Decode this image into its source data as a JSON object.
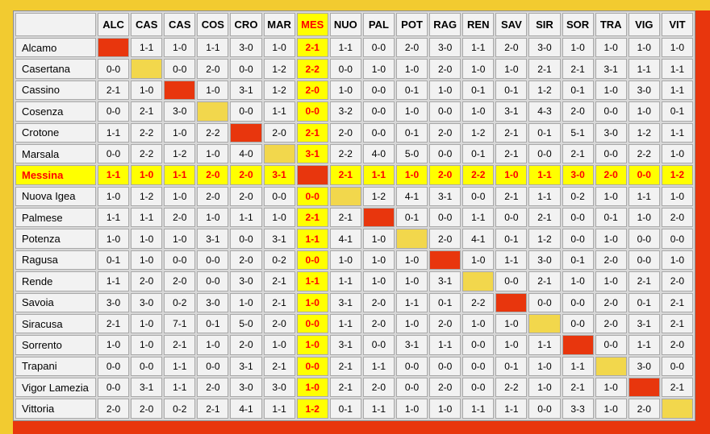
{
  "page": {
    "background_color": "#F2CB30",
    "accent_red": "#E8360D"
  },
  "results_table": {
    "corner_label": "",
    "columns": [
      "ALC",
      "CAS",
      "CAS",
      "COS",
      "CRO",
      "MAR",
      "MES",
      "NUO",
      "PAL",
      "POT",
      "RAG",
      "REN",
      "SAV",
      "SIR",
      "SOR",
      "TRA",
      "VIG",
      "VIT"
    ],
    "highlighted_column_index": 6,
    "highlighted_team": "Messina",
    "colors": {
      "highlight_bg": "#FFFF00",
      "highlight_text": "#FF0000",
      "diagonal_red": "#E8360D",
      "diagonal_yellow": "#F2D74C",
      "cell_bg": "#F2F2F2"
    },
    "rows": [
      {
        "team": "Alcamo",
        "diagonal": "red",
        "scores": [
          null,
          "1-1",
          "1-0",
          "1-1",
          "3-0",
          "1-0",
          "2-1",
          "1-1",
          "0-0",
          "2-0",
          "3-0",
          "1-1",
          "2-0",
          "3-0",
          "1-0",
          "1-0",
          "1-0",
          "1-0"
        ]
      },
      {
        "team": "Casertana",
        "diagonal": "yellow",
        "scores": [
          "0-0",
          null,
          "0-0",
          "2-0",
          "0-0",
          "1-2",
          "2-2",
          "0-0",
          "1-0",
          "1-0",
          "2-0",
          "1-0",
          "1-0",
          "2-1",
          "2-1",
          "3-1",
          "1-1",
          "1-1"
        ]
      },
      {
        "team": "Cassino",
        "diagonal": "red",
        "scores": [
          "2-1",
          "1-0",
          null,
          "1-0",
          "3-1",
          "1-2",
          "2-0",
          "1-0",
          "0-0",
          "0-1",
          "1-0",
          "0-1",
          "0-1",
          "1-2",
          "0-1",
          "1-0",
          "3-0",
          "1-1"
        ]
      },
      {
        "team": "Cosenza",
        "diagonal": "yellow",
        "scores": [
          "0-0",
          "2-1",
          "3-0",
          null,
          "0-0",
          "1-1",
          "0-0",
          "3-2",
          "0-0",
          "1-0",
          "0-0",
          "1-0",
          "3-1",
          "4-3",
          "2-0",
          "0-0",
          "1-0",
          "0-1"
        ]
      },
      {
        "team": "Crotone",
        "diagonal": "red",
        "scores": [
          "1-1",
          "2-2",
          "1-0",
          "2-2",
          null,
          "2-0",
          "2-1",
          "2-0",
          "0-0",
          "0-1",
          "2-0",
          "1-2",
          "2-1",
          "0-1",
          "5-1",
          "3-0",
          "1-2",
          "1-1"
        ]
      },
      {
        "team": "Marsala",
        "diagonal": "yellow",
        "scores": [
          "0-0",
          "2-2",
          "1-2",
          "1-0",
          "4-0",
          null,
          "3-1",
          "2-2",
          "4-0",
          "5-0",
          "0-0",
          "0-1",
          "2-1",
          "0-0",
          "2-1",
          "0-0",
          "2-2",
          "1-0"
        ]
      },
      {
        "team": "Messina",
        "diagonal": "red",
        "scores": [
          "1-1",
          "1-0",
          "1-1",
          "2-0",
          "2-0",
          "3-1",
          null,
          "2-1",
          "1-1",
          "1-0",
          "2-0",
          "2-2",
          "1-0",
          "1-1",
          "3-0",
          "2-0",
          "0-0",
          "1-2"
        ]
      },
      {
        "team": "Nuova Igea",
        "diagonal": "yellow",
        "scores": [
          "1-0",
          "1-2",
          "1-0",
          "2-0",
          "2-0",
          "0-0",
          "0-0",
          null,
          "1-2",
          "4-1",
          "3-1",
          "0-0",
          "2-1",
          "1-1",
          "0-2",
          "1-0",
          "1-1",
          "1-0"
        ]
      },
      {
        "team": "Palmese",
        "diagonal": "red",
        "scores": [
          "1-1",
          "1-1",
          "2-0",
          "1-0",
          "1-1",
          "1-0",
          "2-1",
          "2-1",
          null,
          "0-1",
          "0-0",
          "1-1",
          "0-0",
          "2-1",
          "0-0",
          "0-1",
          "1-0",
          "2-0"
        ]
      },
      {
        "team": "Potenza",
        "diagonal": "yellow",
        "scores": [
          "1-0",
          "1-0",
          "1-0",
          "3-1",
          "0-0",
          "3-1",
          "1-1",
          "4-1",
          "1-0",
          null,
          "2-0",
          "4-1",
          "0-1",
          "1-2",
          "0-0",
          "1-0",
          "0-0",
          "0-0"
        ]
      },
      {
        "team": "Ragusa",
        "diagonal": "red",
        "scores": [
          "0-1",
          "1-0",
          "0-0",
          "0-0",
          "2-0",
          "0-2",
          "0-0",
          "1-0",
          "1-0",
          "1-0",
          null,
          "1-0",
          "1-1",
          "3-0",
          "0-1",
          "2-0",
          "0-0",
          "1-0"
        ]
      },
      {
        "team": "Rende",
        "diagonal": "yellow",
        "scores": [
          "1-1",
          "2-0",
          "2-0",
          "0-0",
          "3-0",
          "2-1",
          "1-1",
          "1-1",
          "1-0",
          "1-0",
          "3-1",
          null,
          "0-0",
          "2-1",
          "1-0",
          "1-0",
          "2-1",
          "2-0"
        ]
      },
      {
        "team": "Savoia",
        "diagonal": "red",
        "scores": [
          "3-0",
          "3-0",
          "0-2",
          "3-0",
          "1-0",
          "2-1",
          "1-0",
          "3-1",
          "2-0",
          "1-1",
          "0-1",
          "2-2",
          null,
          "0-0",
          "0-0",
          "2-0",
          "0-1",
          "2-1"
        ]
      },
      {
        "team": "Siracusa",
        "diagonal": "yellow",
        "scores": [
          "2-1",
          "1-0",
          "7-1",
          "0-1",
          "5-0",
          "2-0",
          "0-0",
          "1-1",
          "2-0",
          "1-0",
          "2-0",
          "1-0",
          "1-0",
          null,
          "0-0",
          "2-0",
          "3-1",
          "2-1"
        ]
      },
      {
        "team": "Sorrento",
        "diagonal": "red",
        "scores": [
          "1-0",
          "1-0",
          "2-1",
          "1-0",
          "2-0",
          "1-0",
          "1-0",
          "3-1",
          "0-0",
          "3-1",
          "1-1",
          "0-0",
          "1-0",
          "1-1",
          null,
          "0-0",
          "1-1",
          "2-0"
        ]
      },
      {
        "team": "Trapani",
        "diagonal": "yellow",
        "scores": [
          "0-0",
          "0-0",
          "1-1",
          "0-0",
          "3-1",
          "2-1",
          "0-0",
          "2-1",
          "1-1",
          "0-0",
          "0-0",
          "0-0",
          "0-1",
          "1-0",
          "1-1",
          null,
          "3-0",
          "0-0"
        ]
      },
      {
        "team": "Vigor Lamezia",
        "diagonal": "red",
        "scores": [
          "0-0",
          "3-1",
          "1-1",
          "2-0",
          "3-0",
          "3-0",
          "1-0",
          "2-1",
          "2-0",
          "0-0",
          "2-0",
          "0-0",
          "2-2",
          "1-0",
          "2-1",
          "1-0",
          null,
          "2-1"
        ]
      },
      {
        "team": "Vittoria",
        "diagonal": "yellow",
        "scores": [
          "2-0",
          "2-0",
          "0-2",
          "2-1",
          "4-1",
          "1-1",
          "1-2",
          "0-1",
          "1-1",
          "1-0",
          "1-0",
          "1-1",
          "1-1",
          "0-0",
          "3-3",
          "1-0",
          "2-0",
          null
        ]
      }
    ]
  }
}
